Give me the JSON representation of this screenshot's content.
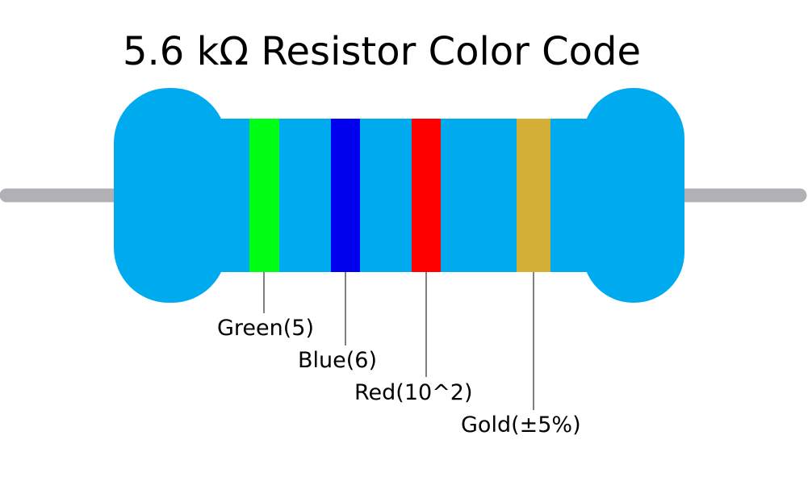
{
  "title": "5.6 kΩ Resistor Color Code",
  "colors": {
    "body": "#00aaee",
    "lead": "#b0b0b5",
    "background": "#ffffff"
  },
  "bands": [
    {
      "label": "Green(5)",
      "color": "#00ff14"
    },
    {
      "label": "Blue(6)",
      "color": "#0000ee"
    },
    {
      "label": "Red(10^2)",
      "color": "#ff0000"
    },
    {
      "label": "Gold(±5%)",
      "color": "#d4af37"
    }
  ]
}
